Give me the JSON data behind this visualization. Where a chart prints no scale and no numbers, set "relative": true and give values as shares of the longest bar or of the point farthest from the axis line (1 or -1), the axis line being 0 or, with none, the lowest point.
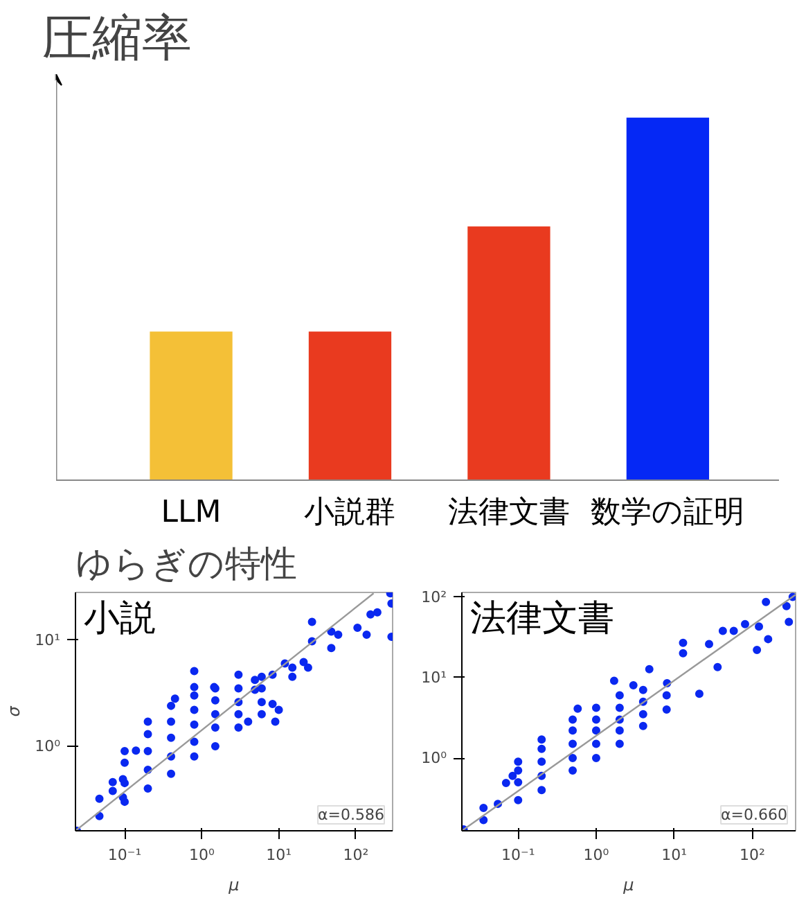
{
  "chart_data": [
    {
      "type": "bar",
      "title": "圧縮率",
      "categories": [
        "LLM",
        "小説群",
        "法律文書",
        "数学の証明"
      ],
      "values": [
        0.41,
        0.41,
        0.7,
        1
      ],
      "colors": [
        "#f4c037",
        "#e93a1f",
        "#e93a1f",
        "#0528f5"
      ],
      "relative": true
    },
    {
      "type": "scatter",
      "title": "ゆらぎの特性",
      "xlabel": "μ",
      "ylabel": "σ",
      "annotations": [
        "小説",
        "α=0.586"
      ],
      "log": "xy",
      "marker": "circle",
      "grid": false,
      "xlim": [
        0.023,
        300
      ],
      "ylim": [
        0.16,
        28
      ],
      "xticks": [
        {
          "value": 0.1,
          "label": "10⁻¹"
        },
        {
          "value": 1,
          "label": "10⁰"
        },
        {
          "value": 10,
          "label": "10¹"
        },
        {
          "value": 100,
          "label": "10²"
        }
      ],
      "yticks": [
        {
          "value": 1,
          "label": "10⁰"
        },
        {
          "value": 10,
          "label": "10¹"
        }
      ],
      "series": [
        {
          "color": "#0a28f0",
          "x": [
            0.024,
            0.047,
            0.047,
            0.07,
            0.07,
            0.095,
            0.095,
            0.14,
            0.45,
            0.8,
            0.8,
            1.45,
            3,
            4.9,
            4.9,
            8.3,
            12,
            15,
            21,
            27,
            27,
            48,
            48,
            59,
            105,
            138,
            155,
            190,
            280,
            290,
            290,
            8.3,
            10,
            9,
            4,
            15,
            24,
            0.1,
            0.1,
            0.1,
            0.1,
            0.2,
            0.2,
            0.2,
            0.2,
            0.2,
            0.4,
            0.4,
            0.4,
            0.4,
            0.4,
            0.8,
            0.8,
            0.8,
            0.8,
            0.8,
            1.5,
            1.5,
            1.5,
            1.5,
            1.5,
            3,
            3,
            3,
            3,
            6,
            6,
            6,
            6
          ],
          "values": [
            0.16,
            0.22,
            0.32,
            0.38,
            0.46,
            0.49,
            0.33,
            0.91,
            2.8,
            5.1,
            3.6,
            3.6,
            4.7,
            3.4,
            4.2,
            4.7,
            6,
            5.5,
            6.2,
            14.8,
            9.7,
            8.4,
            12,
            11.2,
            13,
            11.2,
            17.4,
            18.2,
            27.5,
            22,
            10.7,
            2.5,
            2.2,
            1.7,
            1.7,
            4.5,
            5.5,
            0.3,
            0.45,
            0.7,
            0.9,
            0.4,
            0.6,
            0.9,
            1.3,
            1.7,
            0.55,
            0.8,
            1.2,
            1.7,
            2.4,
            0.8,
            1.1,
            1.6,
            2.2,
            3,
            1,
            1.5,
            2,
            2.7,
            3.5,
            1.5,
            2,
            2.6,
            3.5,
            2,
            2.6,
            3.5,
            4.5
          ]
        },
        {
          "type": "line",
          "marker": "none",
          "color": "#999999",
          "x": [
            0.023,
            170
          ],
          "values": [
            0.16,
            27.5
          ]
        }
      ]
    },
    {
      "type": "scatter",
      "xlabel": "μ",
      "annotations": [
        "法律文書",
        "α=0.660"
      ],
      "log": "xy",
      "marker": "circle",
      "grid": false,
      "xlim": [
        0.019,
        360
      ],
      "ylim": [
        0.125,
        114
      ],
      "xticks": [
        {
          "value": 0.1,
          "label": "10⁻¹"
        },
        {
          "value": 1,
          "label": "10⁰"
        },
        {
          "value": 10,
          "label": "10¹"
        },
        {
          "value": 100,
          "label": "10²"
        }
      ],
      "yticks": [
        {
          "value": 1,
          "label": "10⁰"
        },
        {
          "value": 10,
          "label": "10¹"
        },
        {
          "value": 100,
          "label": "10²"
        }
      ],
      "series": [
        {
          "color": "#0a28f0",
          "x": [
            0.02,
            0.036,
            0.036,
            0.055,
            0.07,
            0.085,
            0.58,
            1.7,
            3,
            13,
            13,
            28,
            42,
            58,
            81,
            122,
            115,
            150,
            275,
            295,
            160,
            330,
            21,
            8.1,
            4.8,
            36,
            0.1,
            0.1,
            0.1,
            0.1,
            0.2,
            0.2,
            0.2,
            0.2,
            0.2,
            0.5,
            0.5,
            0.5,
            0.5,
            0.5,
            1,
            1,
            1,
            1,
            1,
            2,
            2,
            2,
            2,
            2,
            4,
            4,
            4,
            4,
            8,
            8
          ],
          "values": [
            0.13,
            0.17,
            0.24,
            0.27,
            0.49,
            0.6,
            4.1,
            9.1,
            8,
            27,
            20,
            26,
            38,
            38,
            46,
            43,
            22,
            87,
            77,
            49,
            30,
            100,
            6.3,
            8.5,
            12.7,
            13.5,
            0.3,
            0.5,
            0.7,
            0.9,
            0.4,
            0.6,
            0.9,
            1.3,
            1.7,
            0.7,
            1,
            1.5,
            2.2,
            3,
            1,
            1.5,
            2.2,
            3,
            4.2,
            1.5,
            2.2,
            3,
            4.2,
            6,
            2.5,
            3.5,
            5,
            7,
            4,
            6
          ]
        },
        {
          "type": "line",
          "marker": "none",
          "color": "#999999",
          "x": [
            0.019,
            360
          ],
          "values": [
            0.125,
            107
          ]
        }
      ]
    }
  ]
}
